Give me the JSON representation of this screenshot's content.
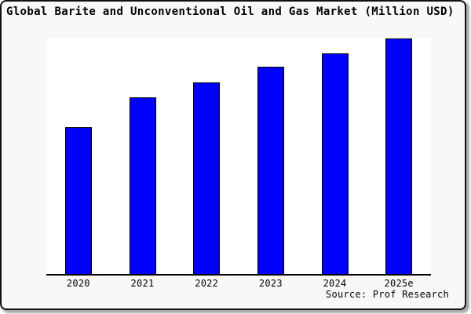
{
  "window": {
    "title": "Global Barite and Unconventional Oil and Gas Market (Million USD)",
    "source_note": "Source: Prof Research"
  },
  "colors": {
    "bar_fill": "#0000ff",
    "bar_border": "#000000",
    "card_background": "#f8f8f8",
    "plot_background": "#ffffff",
    "axis": "#000000",
    "text": "#000000",
    "card_border": "#111111",
    "shadow": "#aaaaaa"
  },
  "chart_data": {
    "type": "bar",
    "title": "Global Barite and Unconventional Oil and Gas Market (Million USD)",
    "categories": [
      "2020",
      "2021",
      "2022",
      "2023",
      "2024",
      "2025e"
    ],
    "values": [
      62.3,
      75.0,
      81.5,
      88.0,
      93.8,
      100.0
    ],
    "xlabel": "",
    "ylabel": "",
    "ylim": [
      0,
      100
    ],
    "grid": false,
    "legend": false,
    "y_axis_labels_visible": false,
    "values_are_relative_estimates": true,
    "annotation": "Source: Prof Research"
  }
}
